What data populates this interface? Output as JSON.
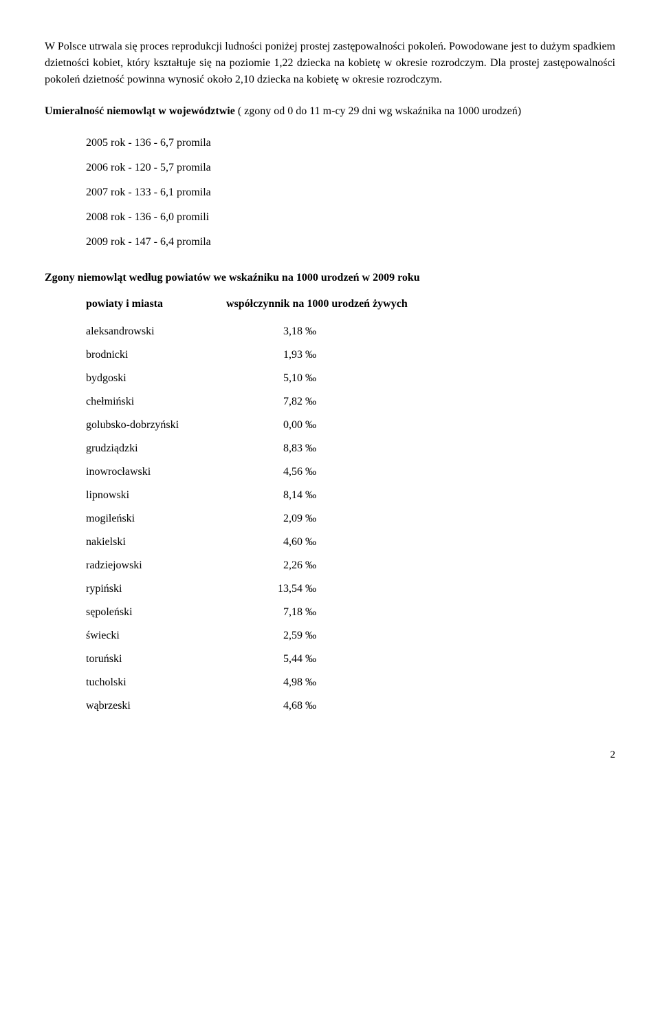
{
  "intro_para": "W Polsce utrwala się proces reprodukcji ludności poniżej prostej zastępowalności pokoleń. Powodowane jest to dużym spadkiem dzietności kobiet, który kształtuje się na poziomie 1,22 dziecka na kobietę w okresie rozrodczym. Dla prostej zastępowalności pokoleń dzietność powinna wynosić około 2,10 dziecka na kobietę w okresie rozrodczym.",
  "mortality_heading": "Umieralność niemowląt  w województwie",
  "mortality_rest": " ( zgony od 0 do 11 m-cy 29 dni  wg wskaźnika na 1000 urodzeń)",
  "years": [
    "2005 rok -  136  -   6,7 promila",
    "2006 rok -  120  -   5,7 promila",
    "2007 rok -  133  -   6,1 promila",
    "2008 rok -  136  -   6,0 promili",
    "2009 rok -  147  -   6,4 promila"
  ],
  "poviat_heading": "Zgony niemowląt według powiatów we wskaźniku na 1000 urodzeń w 2009 roku",
  "col_left": "powiaty i miasta",
  "col_right": "współczynnik na 1000 urodzeń żywych",
  "rows": [
    {
      "name": "aleksandrowski",
      "value": "3,18 ‰"
    },
    {
      "name": "brodnicki",
      "value": "1,93 ‰"
    },
    {
      "name": "bydgoski",
      "value": "5,10 ‰"
    },
    {
      "name": "chełmiński",
      "value": "7,82 ‰"
    },
    {
      "name": "golubsko-dobrzyński",
      "value": "0,00 ‰"
    },
    {
      "name": "grudziądzki",
      "value": "8,83 ‰"
    },
    {
      "name": "inowrocławski",
      "value": "4,56 ‰"
    },
    {
      "name": "lipnowski",
      "value": "8,14 ‰"
    },
    {
      "name": "mogileński",
      "value": "2,09 ‰"
    },
    {
      "name": "nakielski",
      "value": "4,60 ‰"
    },
    {
      "name": "radziejowski",
      "value": "2,26 ‰"
    },
    {
      "name": "rypiński",
      "value": "13,54 ‰"
    },
    {
      "name": "sępoleński",
      "value": "7,18 ‰"
    },
    {
      "name": "świecki",
      "value": "2,59 ‰"
    },
    {
      "name": "toruński",
      "value": "5,44 ‰"
    },
    {
      "name": "tucholski",
      "value": "4,98 ‰"
    },
    {
      "name": "wąbrzeski",
      "value": "4,68 ‰"
    }
  ],
  "page_number": "2"
}
